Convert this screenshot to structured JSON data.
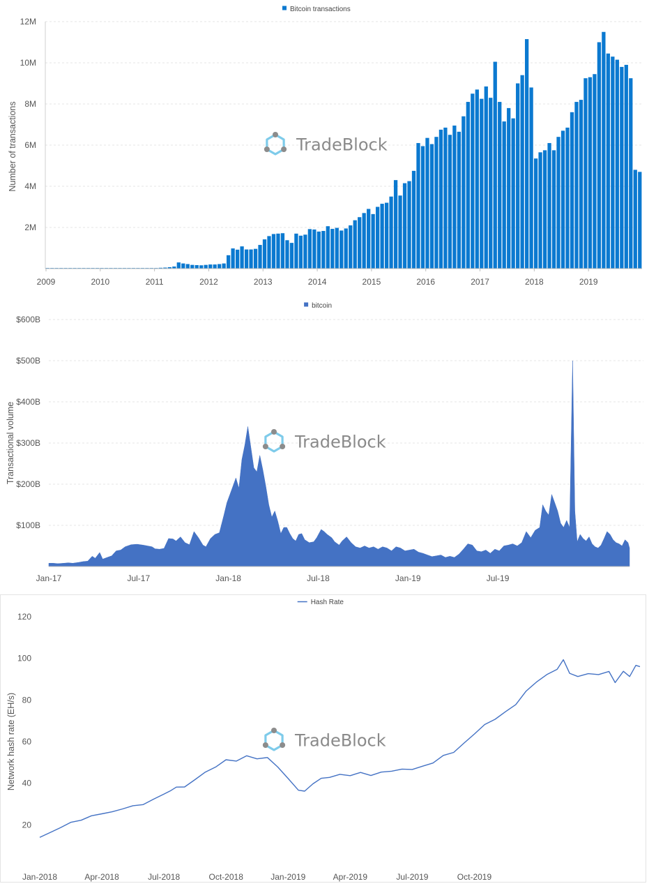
{
  "brand": {
    "watermark_text": "TradeBlock",
    "logo_ring_color": "#7ecbea",
    "logo_dot_color": "#8c8c8c"
  },
  "chart_data": [
    {
      "type": "bar",
      "legend": [
        "Bitcoin transactions"
      ],
      "legend_position": "top-center",
      "ylabel": "Number of transactions",
      "ylim": [
        0,
        12000000
      ],
      "y_ticks": [
        2000000,
        4000000,
        6000000,
        8000000,
        10000000,
        12000000
      ],
      "y_tick_labels": [
        "2M",
        "4M",
        "6M",
        "8M",
        "10M",
        "12M"
      ],
      "x_tick_labels": [
        "2009",
        "2010",
        "2011",
        "2012",
        "2013",
        "2014",
        "2015",
        "2016",
        "2017",
        "2018",
        "2019"
      ],
      "grid": "horizontal dashed",
      "color": "#0b79d0",
      "period": "monthly, Jan 2009 - Dec 2019",
      "series": [
        {
          "name": "Bitcoin transactions",
          "values_millions": [
            0.03,
            0.03,
            0.03,
            0.03,
            0.03,
            0.03,
            0.03,
            0.03,
            0.03,
            0.03,
            0.03,
            0.03,
            0.03,
            0.03,
            0.03,
            0.03,
            0.03,
            0.03,
            0.03,
            0.03,
            0.03,
            0.03,
            0.03,
            0.03,
            0.03,
            0.04,
            0.05,
            0.07,
            0.1,
            0.3,
            0.25,
            0.22,
            0.18,
            0.17,
            0.16,
            0.18,
            0.2,
            0.2,
            0.22,
            0.25,
            0.65,
            0.98,
            0.92,
            1.08,
            0.93,
            0.93,
            0.96,
            1.15,
            1.42,
            1.58,
            1.68,
            1.7,
            1.72,
            1.38,
            1.25,
            1.7,
            1.6,
            1.65,
            1.92,
            1.9,
            1.8,
            1.83,
            2.06,
            1.93,
            1.98,
            1.85,
            1.95,
            2.1,
            2.35,
            2.5,
            2.7,
            2.9,
            2.65,
            3.0,
            3.15,
            3.2,
            3.5,
            4.3,
            3.55,
            4.15,
            4.25,
            4.75,
            6.1,
            5.95,
            6.35,
            6.05,
            6.4,
            6.75,
            6.85,
            6.5,
            6.95,
            6.65,
            7.4,
            8.1,
            8.5,
            8.7,
            8.25,
            8.85,
            8.3,
            10.05,
            8.1,
            7.15,
            7.8,
            7.3,
            9.0,
            9.4,
            11.15,
            8.8,
            5.35,
            5.65,
            5.75,
            6.1,
            5.75,
            6.4,
            6.7,
            6.85,
            7.6,
            8.1,
            8.2,
            9.25,
            9.3,
            9.45,
            11.0,
            11.5,
            10.45,
            10.3,
            10.15,
            9.8,
            9.9,
            9.25,
            4.8,
            4.7
          ]
        }
      ]
    },
    {
      "type": "area",
      "legend": [
        "bitcoin"
      ],
      "legend_position": "top-center",
      "ylabel": "Transactional volume",
      "ylim": [
        0,
        600
      ],
      "y_unit": "billion USD",
      "y_ticks": [
        100,
        200,
        300,
        400,
        500,
        600
      ],
      "y_tick_labels": [
        "$100B",
        "$200B",
        "$300B",
        "$400B",
        "$500B",
        "$600B"
      ],
      "x_tick_labels": [
        "Jan-17",
        "Jul-17",
        "Jan-18",
        "Jul-18",
        "Jan-19",
        "Jul-19"
      ],
      "grid": "horizontal dashed",
      "color": "#4472c4",
      "series": [
        {
          "name": "bitcoin",
          "points_month_value": [
            [
              0,
              8
            ],
            [
              0.3,
              8
            ],
            [
              0.6,
              7
            ],
            [
              1,
              8
            ],
            [
              1.3,
              9
            ],
            [
              1.6,
              8
            ],
            [
              2,
              10
            ],
            [
              2.3,
              12
            ],
            [
              2.6,
              13
            ],
            [
              2.9,
              25
            ],
            [
              3.1,
              20
            ],
            [
              3.4,
              34
            ],
            [
              3.6,
              18
            ],
            [
              3.9,
              22
            ],
            [
              4.2,
              26
            ],
            [
              4.5,
              38
            ],
            [
              4.8,
              40
            ],
            [
              5.1,
              48
            ],
            [
              5.5,
              53
            ],
            [
              5.9,
              54
            ],
            [
              6.3,
              52
            ],
            [
              6.6,
              50
            ],
            [
              6.9,
              48
            ],
            [
              7.1,
              43
            ],
            [
              7.4,
              42
            ],
            [
              7.7,
              44
            ],
            [
              8.0,
              68
            ],
            [
              8.3,
              67
            ],
            [
              8.5,
              62
            ],
            [
              8.8,
              72
            ],
            [
              9.1,
              58
            ],
            [
              9.4,
              53
            ],
            [
              9.7,
              85
            ],
            [
              10.0,
              70
            ],
            [
              10.3,
              52
            ],
            [
              10.5,
              48
            ],
            [
              10.8,
              68
            ],
            [
              11.1,
              78
            ],
            [
              11.4,
              82
            ],
            [
              11.7,
              125
            ],
            [
              11.9,
              155
            ],
            [
              12.1,
              175
            ],
            [
              12.3,
              195
            ],
            [
              12.5,
              215
            ],
            [
              12.7,
              190
            ],
            [
              12.9,
              260
            ],
            [
              13.1,
              295
            ],
            [
              13.3,
              340
            ],
            [
              13.5,
              290
            ],
            [
              13.7,
              240
            ],
            [
              13.9,
              230
            ],
            [
              14.1,
              270
            ],
            [
              14.3,
              235
            ],
            [
              14.5,
              195
            ],
            [
              14.7,
              150
            ],
            [
              14.9,
              120
            ],
            [
              15.1,
              135
            ],
            [
              15.3,
              110
            ],
            [
              15.5,
              80
            ],
            [
              15.7,
              95
            ],
            [
              15.9,
              95
            ],
            [
              16.1,
              80
            ],
            [
              16.3,
              68
            ],
            [
              16.5,
              62
            ],
            [
              16.7,
              78
            ],
            [
              16.9,
              80
            ],
            [
              17.1,
              65
            ],
            [
              17.4,
              58
            ],
            [
              17.7,
              60
            ],
            [
              17.9,
              70
            ],
            [
              18.2,
              90
            ],
            [
              18.4,
              85
            ],
            [
              18.6,
              78
            ],
            [
              18.9,
              70
            ],
            [
              19.1,
              60
            ],
            [
              19.4,
              52
            ],
            [
              19.6,
              62
            ],
            [
              19.9,
              72
            ],
            [
              20.2,
              58
            ],
            [
              20.5,
              48
            ],
            [
              20.8,
              45
            ],
            [
              21.1,
              50
            ],
            [
              21.4,
              45
            ],
            [
              21.7,
              48
            ],
            [
              22.0,
              42
            ],
            [
              22.3,
              48
            ],
            [
              22.6,
              45
            ],
            [
              22.9,
              38
            ],
            [
              23.2,
              48
            ],
            [
              23.5,
              45
            ],
            [
              23.8,
              38
            ],
            [
              24.1,
              40
            ],
            [
              24.4,
              42
            ],
            [
              24.7,
              35
            ],
            [
              25,
              32
            ],
            [
              25.3,
              28
            ],
            [
              25.6,
              24
            ],
            [
              25.9,
              26
            ],
            [
              26.2,
              28
            ],
            [
              26.5,
              22
            ],
            [
              26.8,
              25
            ],
            [
              27.1,
              22
            ],
            [
              27.4,
              30
            ],
            [
              27.7,
              42
            ],
            [
              28.0,
              55
            ],
            [
              28.3,
              52
            ],
            [
              28.6,
              38
            ],
            [
              28.9,
              36
            ],
            [
              29.2,
              40
            ],
            [
              29.5,
              32
            ],
            [
              29.8,
              42
            ],
            [
              30.1,
              38
            ],
            [
              30.4,
              50
            ],
            [
              30.7,
              52
            ],
            [
              31.0,
              55
            ],
            [
              31.3,
              50
            ],
            [
              31.6,
              58
            ],
            [
              31.9,
              85
            ],
            [
              32.2,
              70
            ],
            [
              32.5,
              88
            ],
            [
              32.8,
              95
            ],
            [
              33.0,
              150
            ],
            [
              33.2,
              135
            ],
            [
              33.4,
              125
            ],
            [
              33.6,
              175
            ],
            [
              33.8,
              155
            ],
            [
              34.0,
              135
            ],
            [
              34.2,
              105
            ],
            [
              34.4,
              95
            ],
            [
              34.6,
              112
            ],
            [
              34.8,
              95
            ],
            [
              35.0,
              500
            ],
            [
              35.15,
              135
            ],
            [
              35.3,
              60
            ],
            [
              35.5,
              78
            ],
            [
              35.7,
              68
            ],
            [
              35.9,
              62
            ],
            [
              36.1,
              72
            ],
            [
              36.3,
              55
            ],
            [
              36.5,
              48
            ],
            [
              36.7,
              45
            ],
            [
              36.9,
              52
            ],
            [
              37.1,
              68
            ],
            [
              37.3,
              85
            ],
            [
              37.5,
              78
            ],
            [
              37.7,
              65
            ],
            [
              37.9,
              58
            ],
            [
              38.1,
              55
            ],
            [
              38.3,
              50
            ],
            [
              38.5,
              65
            ],
            [
              38.7,
              58
            ],
            [
              38.8,
              45
            ]
          ]
        }
      ]
    },
    {
      "type": "line",
      "legend": [
        "Hash Rate"
      ],
      "legend_position": "top-center",
      "ylabel": "Network hash rate (EH/s)",
      "ylim": [
        0,
        120
      ],
      "y_ticks": [
        20,
        40,
        60,
        80,
        100,
        120
      ],
      "y_tick_labels": [
        "20",
        "40",
        "60",
        "80",
        "100",
        "120"
      ],
      "x_tick_labels": [
        "Jan-2018",
        "Apr-2018",
        "Jul-2018",
        "Oct-2018",
        "Jan-2019",
        "Apr-2019",
        "Jul-2019",
        "Oct-2019"
      ],
      "grid": "none",
      "color": "#4472c4",
      "series": [
        {
          "name": "Hash Rate",
          "points_month_value": [
            [
              0,
              14
            ],
            [
              0.5,
              16
            ],
            [
              1,
              19
            ],
            [
              1.5,
              21
            ],
            [
              2,
              22.5
            ],
            [
              2.5,
              24
            ],
            [
              3,
              25.5
            ],
            [
              3.5,
              26
            ],
            [
              4,
              28
            ],
            [
              4.5,
              29
            ],
            [
              5,
              30
            ],
            [
              5.5,
              32
            ],
            [
              6,
              35
            ],
            [
              6.3,
              36
            ],
            [
              6.6,
              38.5
            ],
            [
              7,
              38
            ],
            [
              7.5,
              42
            ],
            [
              8,
              45
            ],
            [
              8.5,
              48
            ],
            [
              9,
              51
            ],
            [
              9.5,
              51
            ],
            [
              10,
              53
            ],
            [
              10.5,
              52
            ],
            [
              11,
              52
            ],
            [
              11.5,
              48
            ],
            [
              12,
              42
            ],
            [
              12.5,
              37
            ],
            [
              12.8,
              36
            ],
            [
              13.2,
              40
            ],
            [
              13.6,
              42
            ],
            [
              14,
              43
            ],
            [
              14.5,
              44
            ],
            [
              15,
              44
            ],
            [
              15.5,
              45
            ],
            [
              16,
              44
            ],
            [
              16.5,
              45
            ],
            [
              17,
              46
            ],
            [
              17.5,
              46.5
            ],
            [
              18,
              47
            ],
            [
              18.5,
              48
            ],
            [
              19,
              50
            ],
            [
              19.5,
              53
            ],
            [
              20,
              55
            ],
            [
              20.5,
              59
            ],
            [
              21,
              64
            ],
            [
              21.5,
              68
            ],
            [
              22,
              71
            ],
            [
              22.5,
              74
            ],
            [
              23,
              78
            ],
            [
              23.5,
              84
            ],
            [
              24,
              89
            ],
            [
              24.5,
              92
            ],
            [
              25,
              95
            ],
            [
              25.3,
              99
            ],
            [
              25.6,
              93
            ],
            [
              26,
              91
            ],
            [
              26.5,
              93
            ],
            [
              27,
              92
            ],
            [
              27.5,
              94
            ],
            [
              27.8,
              88
            ],
            [
              28.2,
              94
            ],
            [
              28.5,
              91
            ],
            [
              28.8,
              97
            ],
            [
              29,
              96
            ]
          ]
        }
      ]
    }
  ]
}
